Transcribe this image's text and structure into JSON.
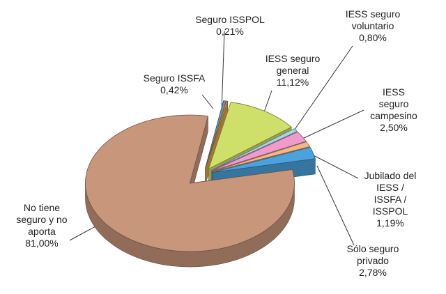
{
  "chart_data": {
    "type": "pie",
    "categories": [
      "Seguro ISSFA",
      "Seguro ISSPOL",
      "IESS seguro\ngeneral",
      "IESS seguro\nvoluntario",
      "IESS seguro\ncampesino",
      "Jubilado del\nIESS / ISSFA / ISSPOL",
      "Sólo seguro\nprivado",
      "No tiene\nseguro y no\naporta"
    ],
    "values": [
      0.42,
      0.21,
      11.12,
      0.8,
      2.5,
      1.19,
      2.78,
      81.0
    ],
    "value_labels": [
      "0,42%",
      "0,21%",
      "11,12%",
      "0,80%",
      "2,50%",
      "1,19%",
      "2,78%",
      "81,00%"
    ],
    "colors": [
      "#6d8fb3",
      "#e2a04a",
      "#cfe06a",
      "#a9d3e3",
      "#ef9ccd",
      "#f6b784",
      "#4aa3dc",
      "#c8967b"
    ]
  }
}
